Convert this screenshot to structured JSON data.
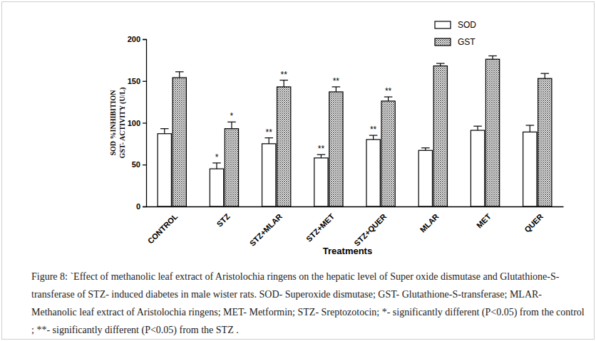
{
  "chart_data": {
    "type": "bar",
    "x_label": "Treatments",
    "y_label": [
      "SOD %INHIBITION",
      "GST- ACTIVITY (U/L)"
    ],
    "caption": "Figure 8: `Effect of methanolic leaf extract of Aristolochia ringens on the hepatic level of  Super oxide dismutase and Glutathione-S-transferase of  STZ- induced diabetes in male wister rats. SOD- Superoxide dismutase; GST- Glutathione-S-transferase; MLAR- Methanolic leaf extract of Aristolochia ringens; MET- Metformin; STZ- Sreptozotocin; *- significantly different (P<0.05) from the control ; **- significantly different (P<0.05) from the STZ .",
    "categories": [
      "CONTROL",
      "STZ",
      "STZ+MLAR",
      "STZ+MET",
      "STZ+QUER",
      "MLAR",
      "MET",
      "QUER"
    ],
    "series": [
      {
        "name": "SOD",
        "color": "#ffffff",
        "values": [
          87,
          45,
          75,
          58,
          80,
          67,
          91,
          89
        ],
        "errors": [
          6,
          7,
          7,
          4,
          5,
          3,
          5,
          8
        ],
        "annotations": [
          null,
          "*",
          "**",
          "**",
          "**",
          null,
          null,
          null
        ]
      },
      {
        "name": "GST",
        "color": "#555555",
        "values": [
          154,
          93,
          143,
          137,
          126,
          168,
          176,
          153
        ],
        "errors": [
          7,
          8,
          8,
          6,
          5,
          3,
          4,
          6
        ],
        "annotations": [
          null,
          "*",
          "**",
          "**",
          "**",
          null,
          null,
          null
        ]
      }
    ],
    "ylim": [
      0,
      200
    ],
    "yticks": [
      0,
      50,
      100,
      150,
      200
    ],
    "legend": "top-right",
    "grid": false
  }
}
